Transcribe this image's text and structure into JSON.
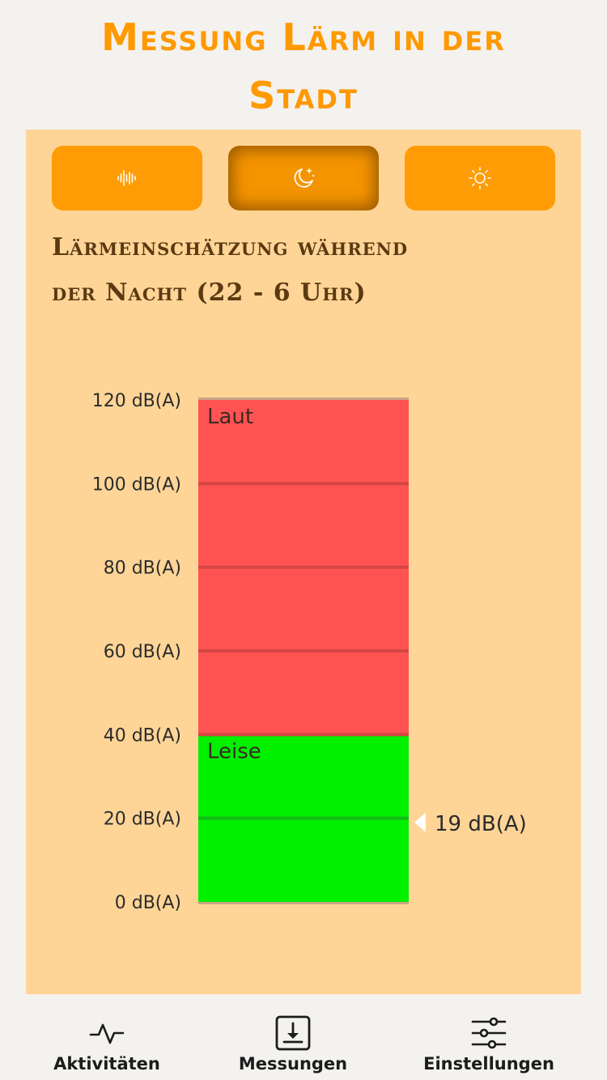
{
  "app": {
    "title_line1": "Messung Lärm in der",
    "title_line2": "Stadt"
  },
  "modes": [
    {
      "name": "sound-wave",
      "active": false
    },
    {
      "name": "night-moon",
      "active": true
    },
    {
      "name": "day-sun",
      "active": false
    }
  ],
  "heading": {
    "line1": "Lärmeinschätzung während",
    "line2": "der Nacht (22 - 6 Uhr)"
  },
  "chart_data": {
    "type": "bar",
    "unit": "dB(A)",
    "ylim": [
      0,
      120
    ],
    "ticks": [
      "0 dB(A)",
      "20 dB(A)",
      "40 dB(A)",
      "60 dB(A)",
      "80 dB(A)",
      "100 dB(A)",
      "120 dB(A)"
    ],
    "tick_values": [
      0,
      20,
      40,
      60,
      80,
      100,
      120
    ],
    "zones": [
      {
        "label": "Leise",
        "from": 0,
        "to": 40,
        "color": "#00f000",
        "line": "#15bb15"
      },
      {
        "label": "Laut",
        "from": 40,
        "to": 120,
        "color": "#ff5353",
        "line": "#d64545"
      }
    ],
    "marker": {
      "value": 19,
      "label": "19 dB(A)"
    }
  },
  "colors": {
    "accent": "#ff9900",
    "panel": "#fed597",
    "heading": "#5b3a12",
    "loud": "#ff5353",
    "quiet": "#00f000"
  },
  "nav": {
    "items": [
      {
        "label": "Aktivitäten",
        "icon": "activity-pulse-icon"
      },
      {
        "label": "Messungen",
        "icon": "download-box-icon"
      },
      {
        "label": "Einstellungen",
        "icon": "sliders-icon"
      }
    ]
  }
}
